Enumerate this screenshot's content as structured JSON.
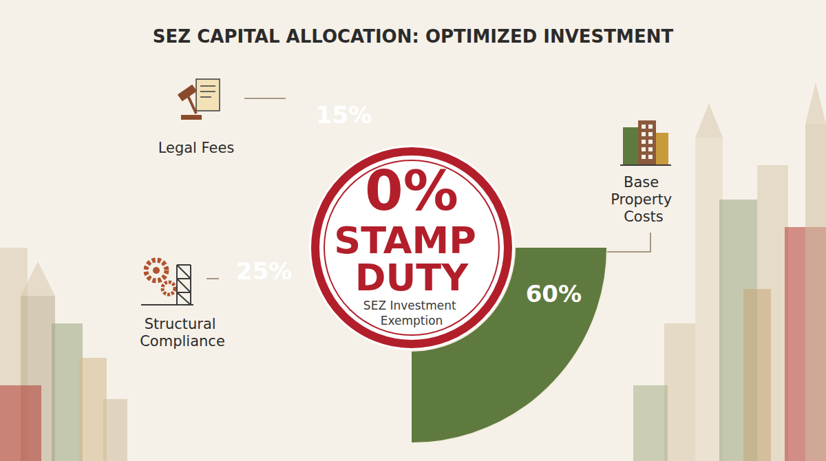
{
  "chart_data": {
    "type": "pie",
    "title": "SEZ CAPITAL ALLOCATION: OPTIMIZED INVESTMENT",
    "categories": [
      "Base Property Costs",
      "Structural Compliance",
      "Legal Fees"
    ],
    "values": [
      60,
      25,
      15
    ],
    "value_labels": [
      "60%",
      "25%",
      "15%"
    ],
    "colors": [
      "#5f7a3e",
      "#c8704b",
      "#c89a3a"
    ],
    "data_labels": true,
    "annotations": [
      "0%",
      "STAMP DUTY",
      "SEZ Investment Exemption"
    ]
  }
}
